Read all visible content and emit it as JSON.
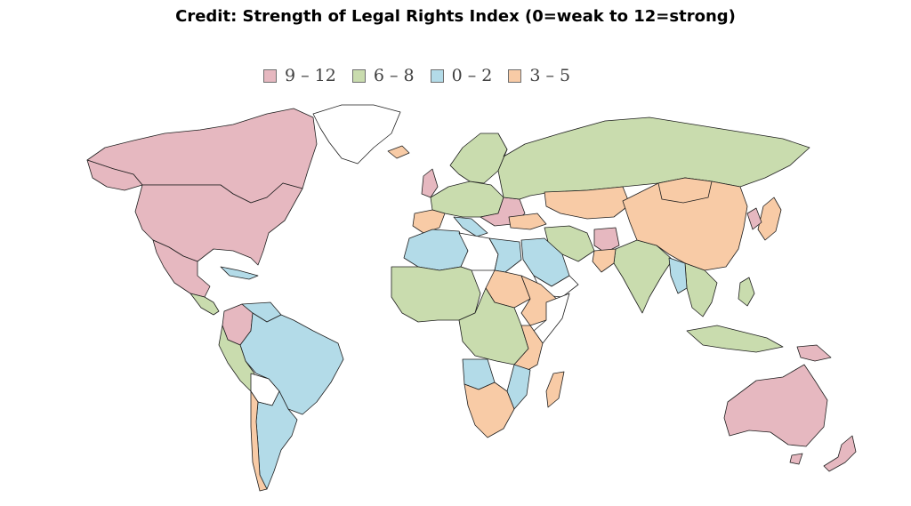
{
  "title": "Credit: Strength of Legal Rights Index (0=weak to 12=strong)",
  "legend": [
    {
      "label": "9 – 12",
      "color": "#e6b8c0"
    },
    {
      "label": "6 – 8",
      "color": "#c9dcae"
    },
    {
      "label": "0 – 2",
      "color": "#b3dbe8"
    },
    {
      "label": "3 – 5",
      "color": "#f8cba6"
    }
  ],
  "colors": {
    "strong": "#e6b8c0",
    "moderate": "#c9dcae",
    "weak": "#b3dbe8",
    "low": "#f8cba6",
    "no_data": "#ffffff",
    "border": "#1f1f1f"
  }
}
